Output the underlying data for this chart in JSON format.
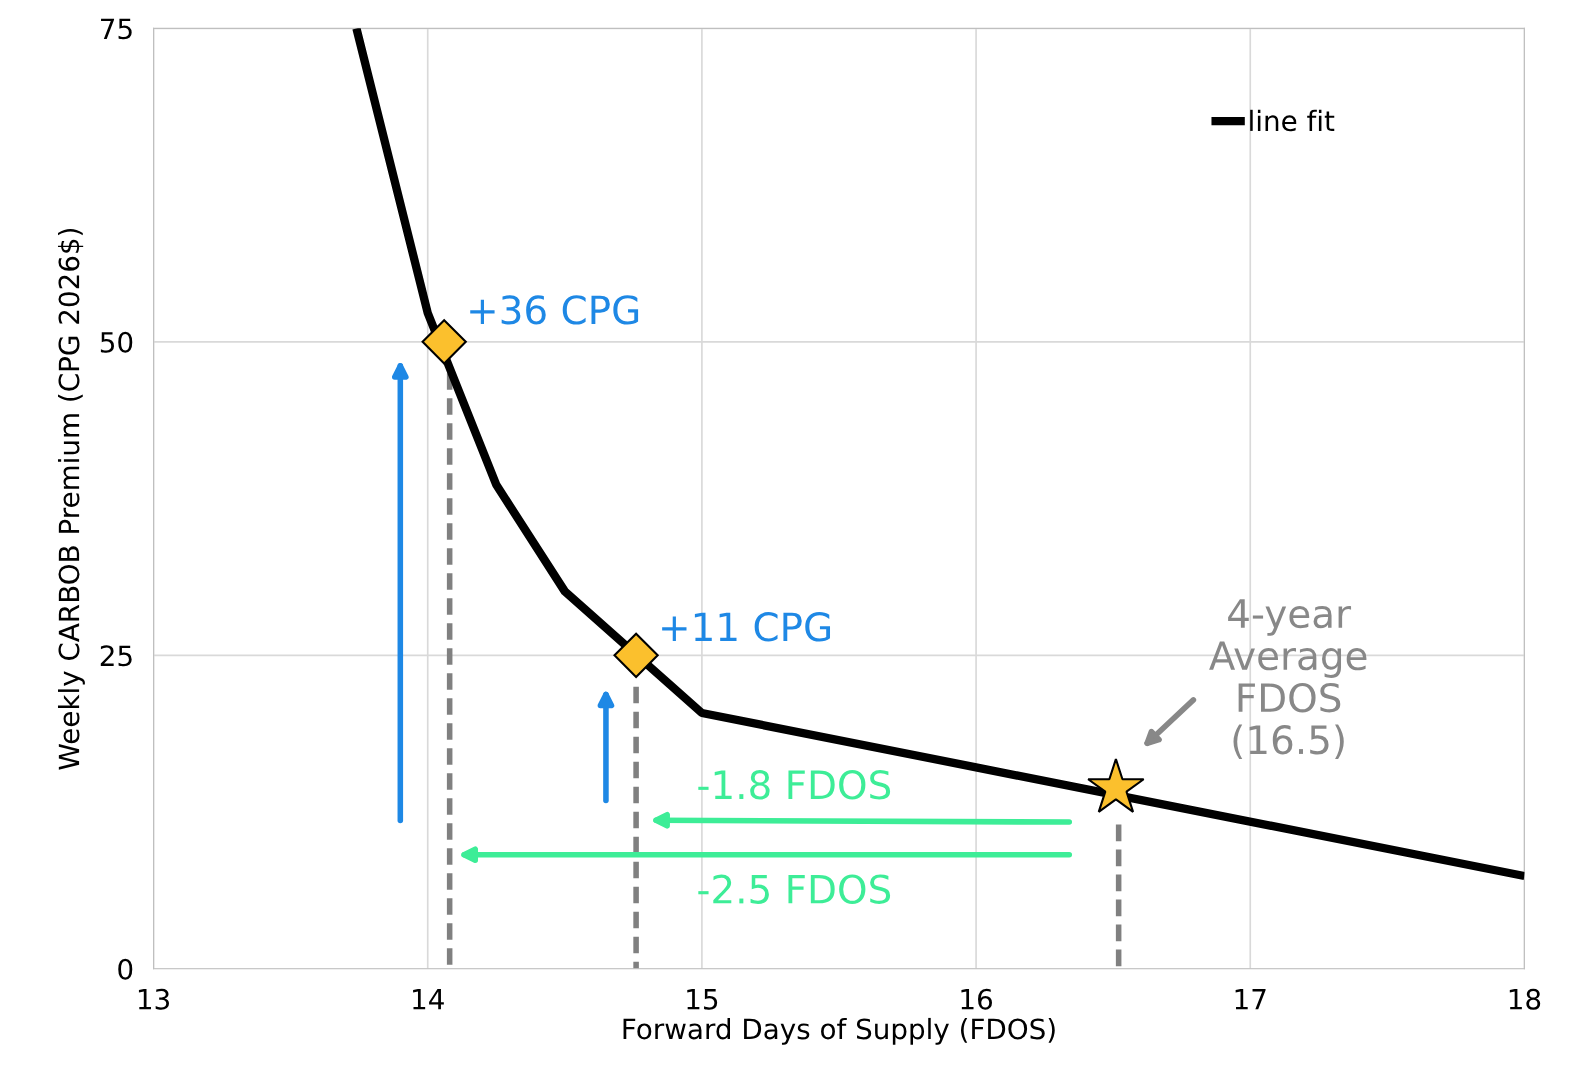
{
  "chart_data": {
    "type": "line",
    "xlabel": "Forward Days of Supply (FDOS)",
    "ylabel": "Weekly CARBOB Premium (CPG 2026$)",
    "xlim": [
      13,
      18
    ],
    "ylim": [
      0,
      75
    ],
    "xticks": [
      13,
      14,
      15,
      16,
      17,
      18
    ],
    "yticks": [
      0,
      25,
      50,
      75
    ],
    "grid": true,
    "legend": "top right",
    "series": [
      {
        "name": "line fit",
        "color": "#000000",
        "x": [
          13.74,
          14.0,
          14.25,
          14.5,
          15.0,
          18.0
        ],
        "values": [
          75,
          52.3,
          38.6,
          30.1,
          20.4,
          7.4
        ]
      },
      {
        "color": "#808080",
        "line_style": "dashed",
        "x": [
          14.08,
          14.08
        ],
        "values": [
          47.5,
          0
        ]
      },
      {
        "color": "#808080",
        "line_style": "dashed",
        "x": [
          14.76,
          14.76
        ],
        "values": [
          22.5,
          0
        ]
      },
      {
        "color": "#808080",
        "line_style": "dashed",
        "x": [
          16.52,
          16.52
        ],
        "values": [
          11.5,
          0
        ]
      },
      {
        "type": "scatter",
        "color": "#fbc02d",
        "marker": "diamond",
        "x": [
          14.06,
          14.76
        ],
        "values": [
          50,
          25
        ]
      },
      {
        "type": "scatter",
        "color": "#fbc02d",
        "marker": "star",
        "x": [
          16.51
        ],
        "values": [
          14.4
        ]
      }
    ],
    "annotations": [
      "+36 CPG",
      "+11 CPG",
      "-1.8 FDOS",
      "-2.5 FDOS",
      "4-year\nAverage\nFDOS\n(16.5)"
    ]
  }
}
